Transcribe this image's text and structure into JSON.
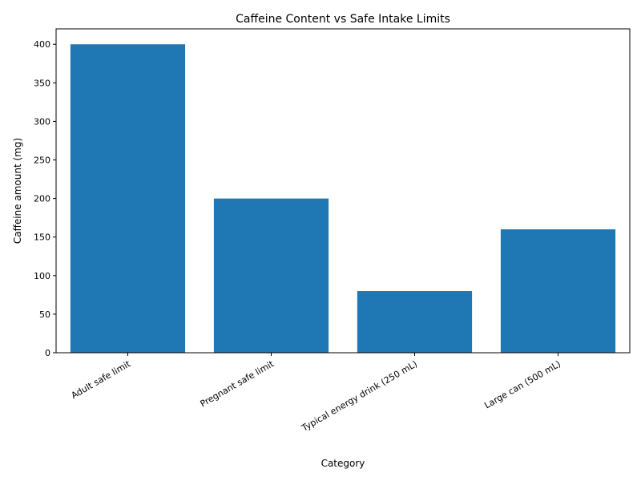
{
  "chart_data": {
    "type": "bar",
    "title": "Caffeine Content vs Safe Intake Limits",
    "xlabel": "Category",
    "ylabel": "Caffeine amount (mg)",
    "categories": [
      "Adult safe limit",
      "Pregnant safe limit",
      "Typical energy drink (250 mL)",
      "Large can (500 mL)"
    ],
    "values": [
      400,
      200,
      80,
      160
    ],
    "ylim": [
      0,
      420
    ],
    "yticks": [
      0,
      50,
      100,
      150,
      200,
      250,
      300,
      350,
      400
    ],
    "bar_color": "#1f77b4",
    "grid": false,
    "legend": "none"
  }
}
